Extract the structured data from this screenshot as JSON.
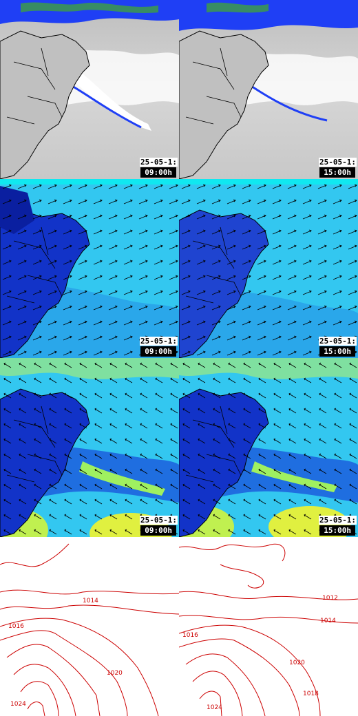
{
  "panels": {
    "sat_09": {
      "date": "25-05-1:",
      "time": "09:00h"
    },
    "sat_15": {
      "date": "25-05-1:",
      "time": "15:00h"
    },
    "wind1_09": {
      "date": "25-05-1:",
      "time": "09:00h"
    },
    "wind1_15": {
      "date": "25-05-1:",
      "time": "15:00h"
    },
    "wind2_09": {
      "date": "25-05-1:",
      "time": "09:00h"
    },
    "wind2_15": {
      "date": "25-05-1:",
      "time": "15:00h"
    }
  },
  "isobars": {
    "left": [
      "1014",
      "1016",
      "1020",
      "1024"
    ],
    "right": [
      "1012",
      "1014",
      "1016",
      "1018",
      "1020",
      "1024"
    ]
  },
  "colors": {
    "isobar": "#cc0000",
    "border": "#000000",
    "sea_light": "#33c7f0",
    "land_dark": "#1233c8",
    "precip": "#1f3ff5"
  }
}
